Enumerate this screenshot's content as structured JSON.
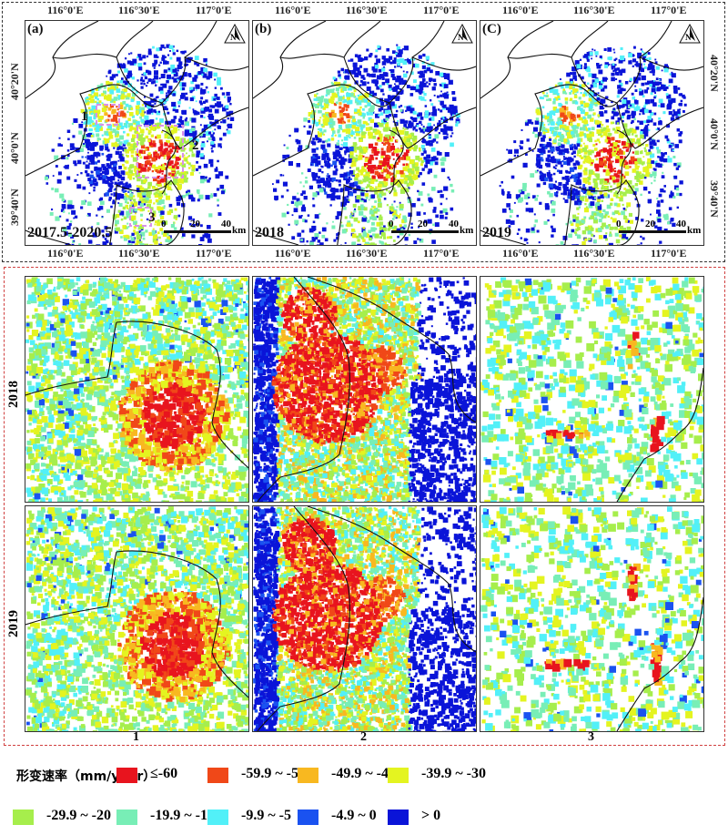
{
  "top_maps": [
    {
      "label": "(a)",
      "period": "2017.5-2020.5"
    },
    {
      "label": "(b)",
      "period": "2018"
    },
    {
      "label": "(C)",
      "period": "2019"
    }
  ],
  "lon_ticks": [
    "116°0'E",
    "116°30'E",
    "117°0'E"
  ],
  "lat_ticks": [
    "40°20'N",
    "40°0'N",
    "39°40'N"
  ],
  "scale_bar": {
    "ticks": [
      "0",
      "20",
      "40"
    ],
    "unit": "km"
  },
  "region_labels": [
    "1",
    "2",
    "3"
  ],
  "detail": {
    "rows": [
      "2018",
      "2019"
    ],
    "columns": [
      "1",
      "2",
      "3"
    ]
  },
  "legend": {
    "title": "形变速率（mm/year）",
    "items": [
      {
        "label": "≤-60",
        "color": "#e8141e"
      },
      {
        "label": "-59.9 ~ -50",
        "color": "#f04818"
      },
      {
        "label": "-49.9 ~ -40",
        "color": "#f8b820"
      },
      {
        "label": "-39.9 ~ -30",
        "color": "#e4f420"
      },
      {
        "label": "-29.9 ~ -20",
        "color": "#a6ee4c"
      },
      {
        "label": "-19.9 ~ -10",
        "color": "#78eeb6"
      },
      {
        "label": "-9.9 ~ -5",
        "color": "#52f0f8"
      },
      {
        "label": "-4.9 ~ 0",
        "color": "#1a52f0"
      },
      {
        "label": "> 0",
        "color": "#0a14d8"
      }
    ]
  }
}
